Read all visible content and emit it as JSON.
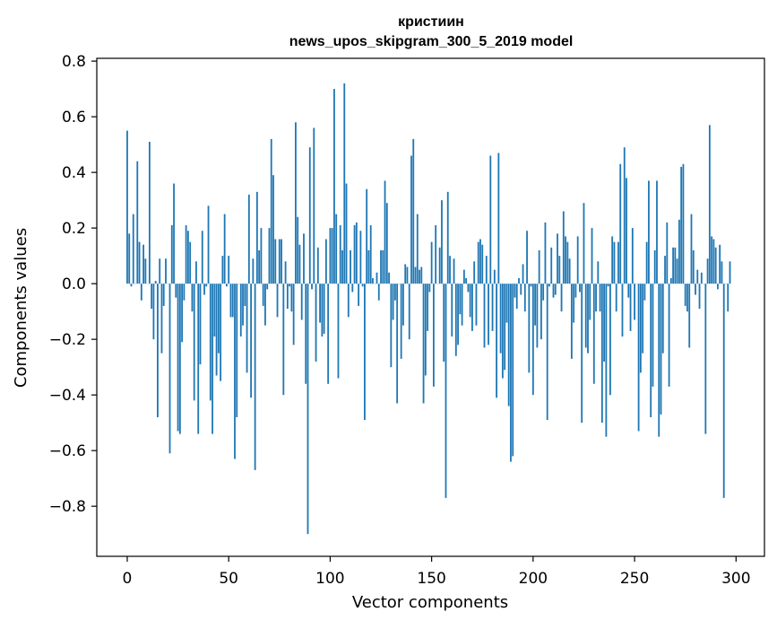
{
  "chart_data": {
    "type": "bar",
    "title": "кристиин",
    "subtitle": "news_upos_skipgram_300_5_2019 model",
    "xlabel": "Vector components",
    "ylabel": "Components values",
    "xlim": [
      -15,
      314
    ],
    "ylim": [
      -0.98,
      0.81
    ],
    "x_ticks": [
      0,
      50,
      100,
      150,
      200,
      250,
      300
    ],
    "y_ticks": [
      -0.8,
      -0.6,
      -0.4,
      -0.2,
      0.0,
      0.2,
      0.4,
      0.6,
      0.8
    ],
    "x_tick_labels": [
      "0",
      "50",
      "100",
      "150",
      "200",
      "250",
      "300"
    ],
    "y_tick_labels": [
      "−0.8",
      "−0.6",
      "−0.4",
      "−0.2",
      "0.0",
      "0.2",
      "0.4",
      "0.6",
      "0.8"
    ],
    "bar_color": "#1f77b4",
    "grid": false,
    "values": [
      0.55,
      0.18,
      -0.01,
      0.25,
      0.0,
      0.44,
      0.15,
      -0.06,
      0.14,
      0.09,
      0.0,
      0.51,
      -0.09,
      -0.2,
      0.01,
      -0.48,
      0.09,
      -0.25,
      -0.08,
      0.09,
      0.0,
      -0.61,
      0.21,
      0.36,
      -0.05,
      -0.53,
      -0.54,
      -0.21,
      -0.06,
      0.21,
      0.19,
      0.15,
      -0.1,
      -0.42,
      0.08,
      -0.54,
      -0.29,
      0.19,
      -0.04,
      -0.01,
      0.28,
      -0.42,
      -0.54,
      -0.19,
      -0.33,
      -0.25,
      -0.35,
      0.1,
      0.25,
      -0.01,
      0.1,
      -0.12,
      -0.12,
      -0.63,
      -0.48,
      0.0,
      -0.19,
      -0.15,
      -0.08,
      -0.32,
      0.32,
      -0.41,
      0.09,
      -0.67,
      0.33,
      0.12,
      0.2,
      -0.08,
      -0.15,
      -0.02,
      0.2,
      0.52,
      0.39,
      0.16,
      -0.12,
      0.16,
      0.16,
      -0.4,
      0.08,
      -0.09,
      -0.01,
      -0.1,
      -0.22,
      0.58,
      0.24,
      0.14,
      -0.13,
      0.18,
      -0.36,
      -0.9,
      0.49,
      -0.02,
      0.56,
      -0.28,
      0.13,
      -0.14,
      -0.19,
      -0.18,
      0.16,
      -0.36,
      0.2,
      0.2,
      0.7,
      0.25,
      -0.34,
      0.21,
      0.12,
      0.72,
      0.36,
      -0.12,
      0.12,
      -0.03,
      0.21,
      0.22,
      -0.08,
      0.19,
      -0.01,
      -0.49,
      0.34,
      0.12,
      0.21,
      0.02,
      0.0,
      0.04,
      -0.06,
      0.12,
      0.12,
      0.37,
      0.29,
      0.04,
      -0.3,
      -0.13,
      -0.06,
      -0.43,
      0.0,
      -0.27,
      -0.15,
      0.07,
      0.06,
      -0.2,
      0.46,
      0.52,
      0.06,
      0.25,
      0.05,
      0.06,
      -0.43,
      -0.33,
      -0.17,
      -0.03,
      0.15,
      -0.37,
      0.21,
      0.0,
      0.13,
      0.3,
      -0.28,
      -0.77,
      0.33,
      0.1,
      -0.19,
      0.09,
      -0.26,
      -0.22,
      -0.11,
      -0.15,
      0.05,
      0.02,
      -0.03,
      -0.12,
      -0.17,
      0.08,
      -0.15,
      0.15,
      0.16,
      0.14,
      -0.23,
      0.1,
      -0.22,
      0.46,
      -0.17,
      0.05,
      -0.41,
      0.47,
      -0.25,
      -0.34,
      -0.31,
      -0.14,
      -0.44,
      -0.64,
      -0.62,
      -0.05,
      -0.09,
      0.02,
      -0.04,
      0.07,
      -0.1,
      0.19,
      -0.32,
      -0.01,
      -0.4,
      -0.15,
      -0.23,
      0.12,
      -0.2,
      -0.06,
      0.22,
      -0.49,
      -0.01,
      0.13,
      -0.05,
      -0.04,
      0.18,
      0.1,
      -0.1,
      0.26,
      0.17,
      0.15,
      0.09,
      -0.27,
      -0.14,
      -0.05,
      0.17,
      -0.03,
      -0.5,
      0.29,
      -0.23,
      -0.25,
      -0.13,
      0.2,
      -0.36,
      -0.1,
      0.08,
      -0.1,
      -0.5,
      -0.28,
      -0.55,
      -0.01,
      -0.4,
      0.17,
      0.15,
      -0.1,
      0.15,
      0.43,
      -0.19,
      0.49,
      0.38,
      -0.05,
      -0.17,
      0.2,
      -0.13,
      0.0,
      -0.53,
      -0.32,
      -0.25,
      -0.06,
      0.15,
      0.37,
      -0.48,
      -0.37,
      0.12,
      0.37,
      -0.55,
      -0.47,
      -0.25,
      0.1,
      0.22,
      -0.37,
      0.02,
      0.13,
      0.13,
      0.09,
      0.23,
      0.42,
      0.43,
      -0.08,
      -0.1,
      -0.23,
      0.25,
      0.12,
      -0.04,
      0.05,
      -0.09,
      0.04,
      0.0,
      -0.54,
      0.09,
      0.57,
      0.17,
      0.16,
      0.13,
      -0.02,
      0.14,
      0.08,
      -0.77,
      0.0,
      -0.1,
      0.08
    ]
  }
}
